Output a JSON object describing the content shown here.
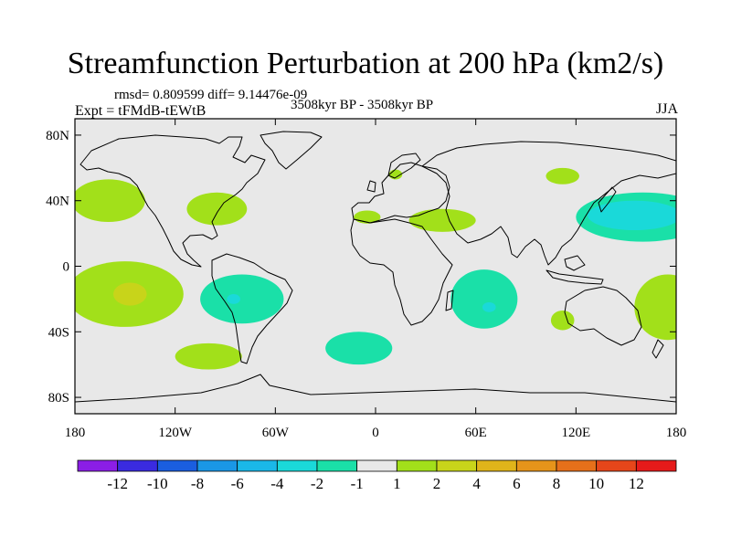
{
  "chart_data": {
    "type": "contour-map",
    "title": "Streamfunction Perturbation at 200 hPa (km2/s)",
    "stats_line": "rmsd= 0.809599 diff= 9.14476e-09",
    "experiment_label": "Expt = tFMdB-tEWtB",
    "period_label": "3508kyr BP - 3508kyr BP",
    "season_label": "JJA",
    "projection": "cylindrical equidistant",
    "lon_range": [
      -180,
      180
    ],
    "lat_range": [
      -90,
      90
    ],
    "x_ticks": [
      {
        "lon": -180,
        "label": "180"
      },
      {
        "lon": -120,
        "label": "120W"
      },
      {
        "lon": -60,
        "label": "60W"
      },
      {
        "lon": 0,
        "label": "0"
      },
      {
        "lon": 60,
        "label": "60E"
      },
      {
        "lon": 120,
        "label": "120E"
      },
      {
        "lon": 180,
        "label": "180"
      }
    ],
    "y_ticks": [
      {
        "lat": 80,
        "label": "80N"
      },
      {
        "lat": 40,
        "label": "40N"
      },
      {
        "lat": 0,
        "label": "0"
      },
      {
        "lat": -40,
        "label": "40S"
      },
      {
        "lat": -80,
        "label": "80S"
      }
    ],
    "colorbar": {
      "colors": [
        "#8b1ee6",
        "#3a2be0",
        "#1a5ee0",
        "#1a97e6",
        "#1ab8e8",
        "#1ad9d9",
        "#1ae0a8",
        "#e8e8e8",
        "#a2e01a",
        "#c8d41a",
        "#e0b41a",
        "#e6941a",
        "#e6701a",
        "#e6461a",
        "#e61a1a"
      ],
      "labels": [
        "-12",
        "-10",
        "-8",
        "-6",
        "-4",
        "-2",
        "-1",
        "1",
        "2",
        "4",
        "6",
        "8",
        "10",
        "12"
      ]
    },
    "anomalies": [
      {
        "name": "n-pacific-east",
        "lon": -160,
        "lat": 40,
        "rx": 22,
        "ry": 13,
        "level": "2",
        "color": "#a2e01a"
      },
      {
        "name": "n-america",
        "lon": -95,
        "lat": 35,
        "rx": 18,
        "ry": 10,
        "level": "2",
        "color": "#a2e01a"
      },
      {
        "name": "s-pacific",
        "lon": -150,
        "lat": -17,
        "rx": 35,
        "ry": 20,
        "level": "2",
        "color": "#a2e01a"
      },
      {
        "name": "s-pacific-core",
        "lon": -147,
        "lat": -17,
        "rx": 10,
        "ry": 7,
        "level": "4",
        "color": "#c8d41a"
      },
      {
        "name": "se-pacific",
        "lon": -80,
        "lat": -20,
        "rx": 25,
        "ry": 15,
        "level": "-1",
        "color": "#1ae0a8"
      },
      {
        "name": "se-pacific-core",
        "lon": -85,
        "lat": -20,
        "rx": 4,
        "ry": 3,
        "level": "-2",
        "color": "#1ad9d9"
      },
      {
        "name": "s-pacific-south",
        "lon": -100,
        "lat": -55,
        "rx": 20,
        "ry": 8,
        "level": "2",
        "color": "#a2e01a"
      },
      {
        "name": "s-atlantic",
        "lon": -10,
        "lat": -50,
        "rx": 20,
        "ry": 10,
        "level": "-1",
        "color": "#1ae0a8"
      },
      {
        "name": "mediterranean",
        "lon": -5,
        "lat": 30,
        "rx": 8,
        "ry": 4,
        "level": "2",
        "color": "#a2e01a"
      },
      {
        "name": "middle-east",
        "lon": 40,
        "lat": 28,
        "rx": 20,
        "ry": 7,
        "level": "2",
        "color": "#a2e01a"
      },
      {
        "name": "scandinavia",
        "lon": 12,
        "lat": 56,
        "rx": 4,
        "ry": 3,
        "level": "2",
        "color": "#a2e01a"
      },
      {
        "name": "siberia",
        "lon": 112,
        "lat": 55,
        "rx": 10,
        "ry": 5,
        "level": "2",
        "color": "#a2e01a"
      },
      {
        "name": "indian-ocean",
        "lon": 65,
        "lat": -20,
        "rx": 20,
        "ry": 18,
        "level": "-1",
        "color": "#1ae0a8"
      },
      {
        "name": "indian-ocean-core",
        "lon": 68,
        "lat": -25,
        "rx": 4,
        "ry": 3,
        "level": "-2",
        "color": "#1ad9d9"
      },
      {
        "name": "nw-pacific",
        "lon": 160,
        "lat": 30,
        "rx": 40,
        "ry": 15,
        "level": "-1",
        "color": "#1ae0a8"
      },
      {
        "name": "nw-pacific-core",
        "lon": 155,
        "lat": 31,
        "rx": 28,
        "ry": 9,
        "level": "-2",
        "color": "#1ad9d9"
      },
      {
        "name": "australia-sw",
        "lon": 112,
        "lat": -33,
        "rx": 7,
        "ry": 6,
        "level": "2",
        "color": "#a2e01a"
      },
      {
        "name": "sw-pacific",
        "lon": 175,
        "lat": -25,
        "rx": 20,
        "ry": 20,
        "level": "2",
        "color": "#a2e01a"
      }
    ]
  }
}
